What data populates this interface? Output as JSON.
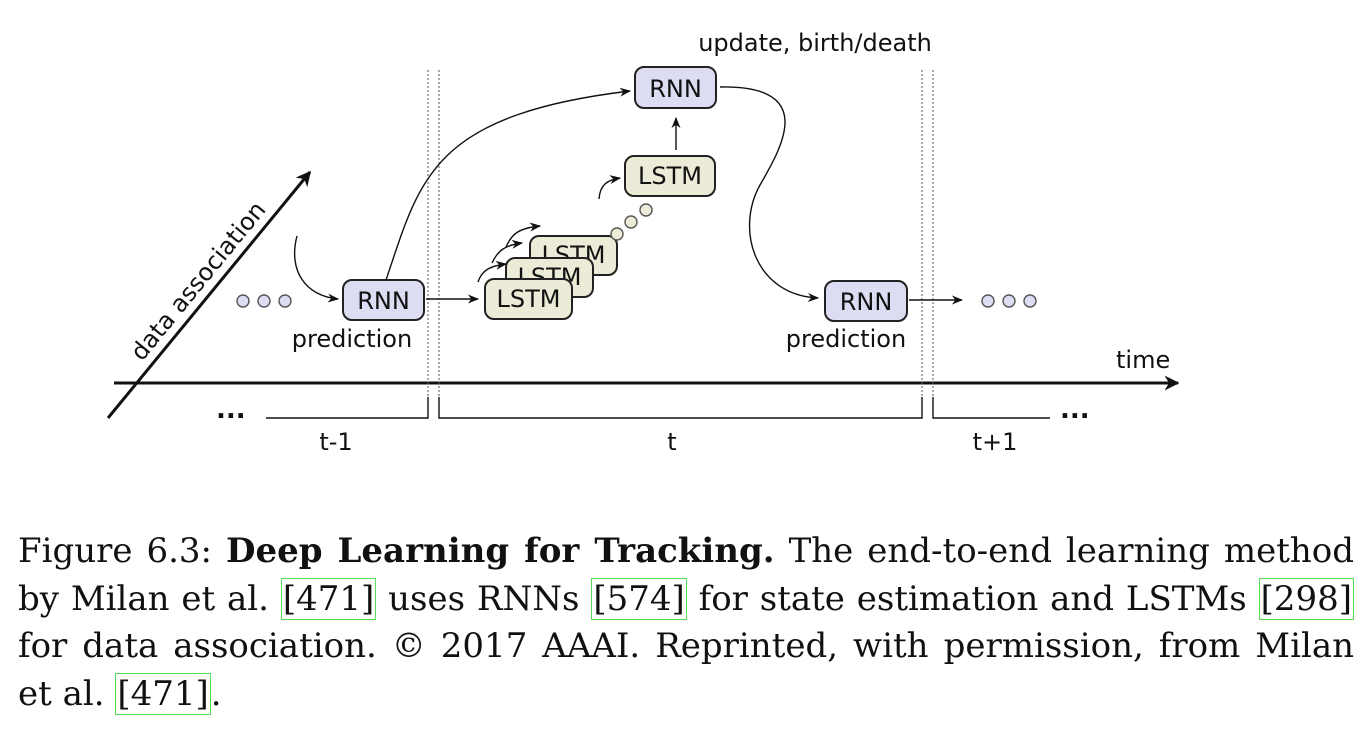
{
  "diagram": {
    "top_label": "update, birth/death",
    "axis_y_label": "data association",
    "axis_x_label": "time",
    "rnn_label": "RNN",
    "lstm_label": "LSTM",
    "prediction_label": "prediction",
    "time_steps": [
      "t-1",
      "t",
      "t+1"
    ],
    "ellipsis": "..."
  },
  "caption": {
    "figure_label": "Figure 6.3:",
    "title": "Deep Learning for Tracking.",
    "text_1": "The end-to-end learning method by Milan et al.",
    "cite_1": "[471]",
    "text_2": "uses RNNs",
    "cite_2": "[574]",
    "text_3": "for state estimation and LSTMs",
    "cite_3": "[298]",
    "text_4": "for data association.",
    "copyright_symbol": "©",
    "text_5": "2017 AAAI. Reprinted, with permission, from Milan et al.",
    "cite_4": "[471]",
    "text_end": "."
  }
}
